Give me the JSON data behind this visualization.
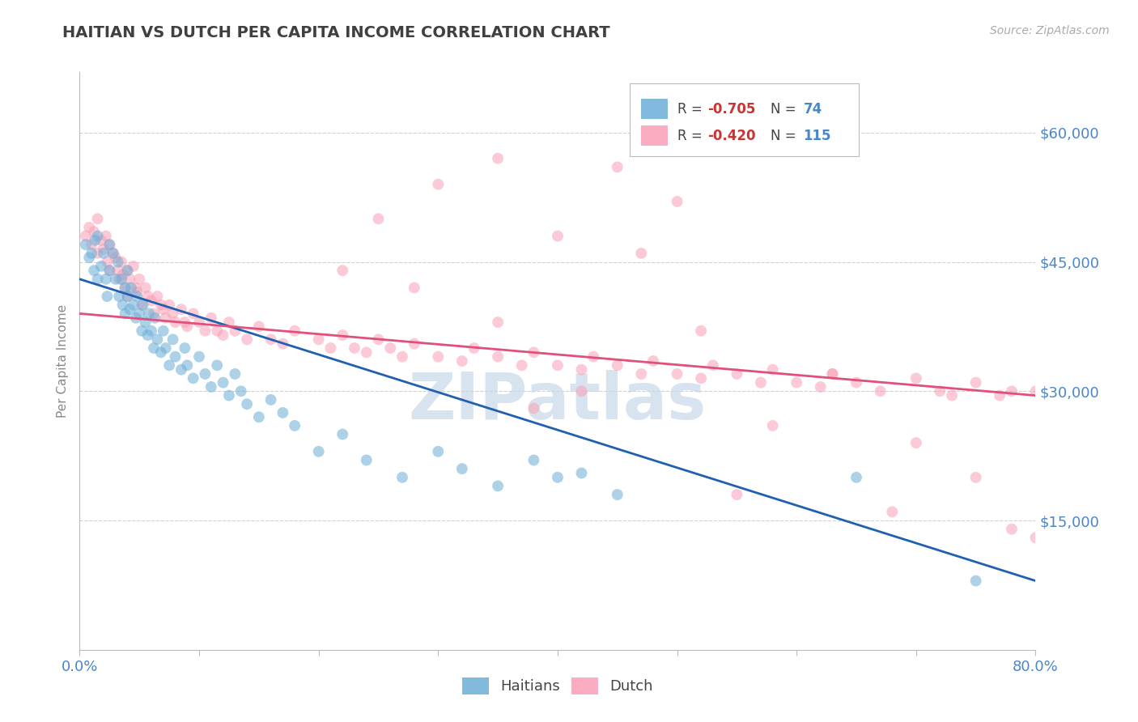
{
  "title": "HAITIAN VS DUTCH PER CAPITA INCOME CORRELATION CHART",
  "source_text": "Source: ZipAtlas.com",
  "ylabel": "Per Capita Income",
  "xlim": [
    0.0,
    0.8
  ],
  "ylim": [
    0,
    67000
  ],
  "yticks": [
    0,
    15000,
    30000,
    45000,
    60000
  ],
  "ytick_labels": [
    "",
    "$15,000",
    "$30,000",
    "$45,000",
    "$60,000"
  ],
  "xticks": [
    0.0,
    0.1,
    0.2,
    0.3,
    0.4,
    0.5,
    0.6,
    0.7,
    0.8
  ],
  "xtick_labels_show": [
    "0.0%",
    "",
    "",
    "",
    "",
    "",
    "",
    "",
    "80.0%"
  ],
  "background_color": "#ffffff",
  "grid_color": "#d0d0d0",
  "title_color": "#404040",
  "tick_label_color": "#4a86c8",
  "haitian_color": "#6baed6",
  "dutch_color": "#fa9fb5",
  "haitian_line_color": "#2060b0",
  "dutch_line_color": "#e0507a",
  "watermark_text": "ZIPatlas",
  "watermark_color": "#c8d8ea",
  "scatter_alpha": 0.55,
  "scatter_size": 100,
  "haitian_line_x0": 0.0,
  "haitian_line_y0": 43000,
  "haitian_line_x1": 0.8,
  "haitian_line_y1": 8000,
  "dutch_line_x0": 0.0,
  "dutch_line_y0": 39000,
  "dutch_line_x1": 0.8,
  "dutch_line_y1": 29500,
  "haitian_x": [
    0.005,
    0.008,
    0.01,
    0.012,
    0.013,
    0.015,
    0.015,
    0.018,
    0.02,
    0.022,
    0.023,
    0.025,
    0.025,
    0.028,
    0.03,
    0.032,
    0.033,
    0.035,
    0.036,
    0.038,
    0.038,
    0.04,
    0.04,
    0.042,
    0.043,
    0.045,
    0.047,
    0.048,
    0.05,
    0.052,
    0.053,
    0.055,
    0.057,
    0.058,
    0.06,
    0.062,
    0.063,
    0.065,
    0.068,
    0.07,
    0.072,
    0.075,
    0.078,
    0.08,
    0.085,
    0.088,
    0.09,
    0.095,
    0.1,
    0.105,
    0.11,
    0.115,
    0.12,
    0.125,
    0.13,
    0.135,
    0.14,
    0.15,
    0.16,
    0.17,
    0.18,
    0.2,
    0.22,
    0.24,
    0.27,
    0.3,
    0.32,
    0.35,
    0.38,
    0.4,
    0.42,
    0.45,
    0.65,
    0.75
  ],
  "haitian_y": [
    47000,
    45500,
    46000,
    44000,
    47500,
    48000,
    43000,
    44500,
    46000,
    43000,
    41000,
    44000,
    47000,
    46000,
    43000,
    45000,
    41000,
    43000,
    40000,
    42000,
    39000,
    41000,
    44000,
    39500,
    42000,
    40000,
    38500,
    41000,
    39000,
    37000,
    40000,
    38000,
    36500,
    39000,
    37000,
    35000,
    38500,
    36000,
    34500,
    37000,
    35000,
    33000,
    36000,
    34000,
    32500,
    35000,
    33000,
    31500,
    34000,
    32000,
    30500,
    33000,
    31000,
    29500,
    32000,
    30000,
    28500,
    27000,
    29000,
    27500,
    26000,
    23000,
    25000,
    22000,
    20000,
    23000,
    21000,
    19000,
    22000,
    20000,
    20500,
    18000,
    20000,
    8000
  ],
  "dutch_x": [
    0.005,
    0.008,
    0.01,
    0.012,
    0.015,
    0.015,
    0.018,
    0.02,
    0.022,
    0.023,
    0.025,
    0.025,
    0.028,
    0.03,
    0.032,
    0.033,
    0.035,
    0.036,
    0.038,
    0.04,
    0.04,
    0.042,
    0.045,
    0.047,
    0.048,
    0.05,
    0.052,
    0.055,
    0.057,
    0.06,
    0.062,
    0.065,
    0.068,
    0.07,
    0.072,
    0.075,
    0.078,
    0.08,
    0.085,
    0.088,
    0.09,
    0.095,
    0.1,
    0.105,
    0.11,
    0.115,
    0.12,
    0.125,
    0.13,
    0.14,
    0.15,
    0.16,
    0.17,
    0.18,
    0.2,
    0.21,
    0.22,
    0.23,
    0.24,
    0.25,
    0.26,
    0.27,
    0.28,
    0.3,
    0.32,
    0.33,
    0.35,
    0.37,
    0.38,
    0.4,
    0.42,
    0.43,
    0.45,
    0.47,
    0.48,
    0.5,
    0.52,
    0.53,
    0.55,
    0.57,
    0.58,
    0.6,
    0.62,
    0.63,
    0.65,
    0.67,
    0.7,
    0.72,
    0.73,
    0.75,
    0.77,
    0.78,
    0.8,
    0.3,
    0.35,
    0.4,
    0.45,
    0.5,
    0.28,
    0.25,
    0.22,
    0.35,
    0.48,
    0.52,
    0.58,
    0.47,
    0.63,
    0.7,
    0.75,
    0.8,
    0.42,
    0.55,
    0.38,
    0.68,
    0.78
  ],
  "dutch_y": [
    48000,
    49000,
    47000,
    48500,
    46000,
    50000,
    47500,
    46500,
    48000,
    45000,
    47000,
    44000,
    46000,
    45500,
    44000,
    43000,
    45000,
    43500,
    42000,
    44000,
    41000,
    43000,
    44500,
    42000,
    41500,
    43000,
    40000,
    42000,
    41000,
    40500,
    39000,
    41000,
    40000,
    39500,
    38500,
    40000,
    39000,
    38000,
    39500,
    38000,
    37500,
    39000,
    38000,
    37000,
    38500,
    37000,
    36500,
    38000,
    37000,
    36000,
    37500,
    36000,
    35500,
    37000,
    36000,
    35000,
    36500,
    35000,
    34500,
    36000,
    35000,
    34000,
    35500,
    34000,
    33500,
    35000,
    34000,
    33000,
    34500,
    33000,
    32500,
    34000,
    33000,
    32000,
    33500,
    32000,
    31500,
    33000,
    32000,
    31000,
    32500,
    31000,
    30500,
    32000,
    31000,
    30000,
    31500,
    30000,
    29500,
    31000,
    29500,
    30000,
    30000,
    54000,
    57000,
    48000,
    56000,
    52000,
    42000,
    50000,
    44000,
    38000,
    64000,
    37000,
    26000,
    46000,
    32000,
    24000,
    20000,
    13000,
    30000,
    18000,
    28000,
    16000,
    14000
  ]
}
